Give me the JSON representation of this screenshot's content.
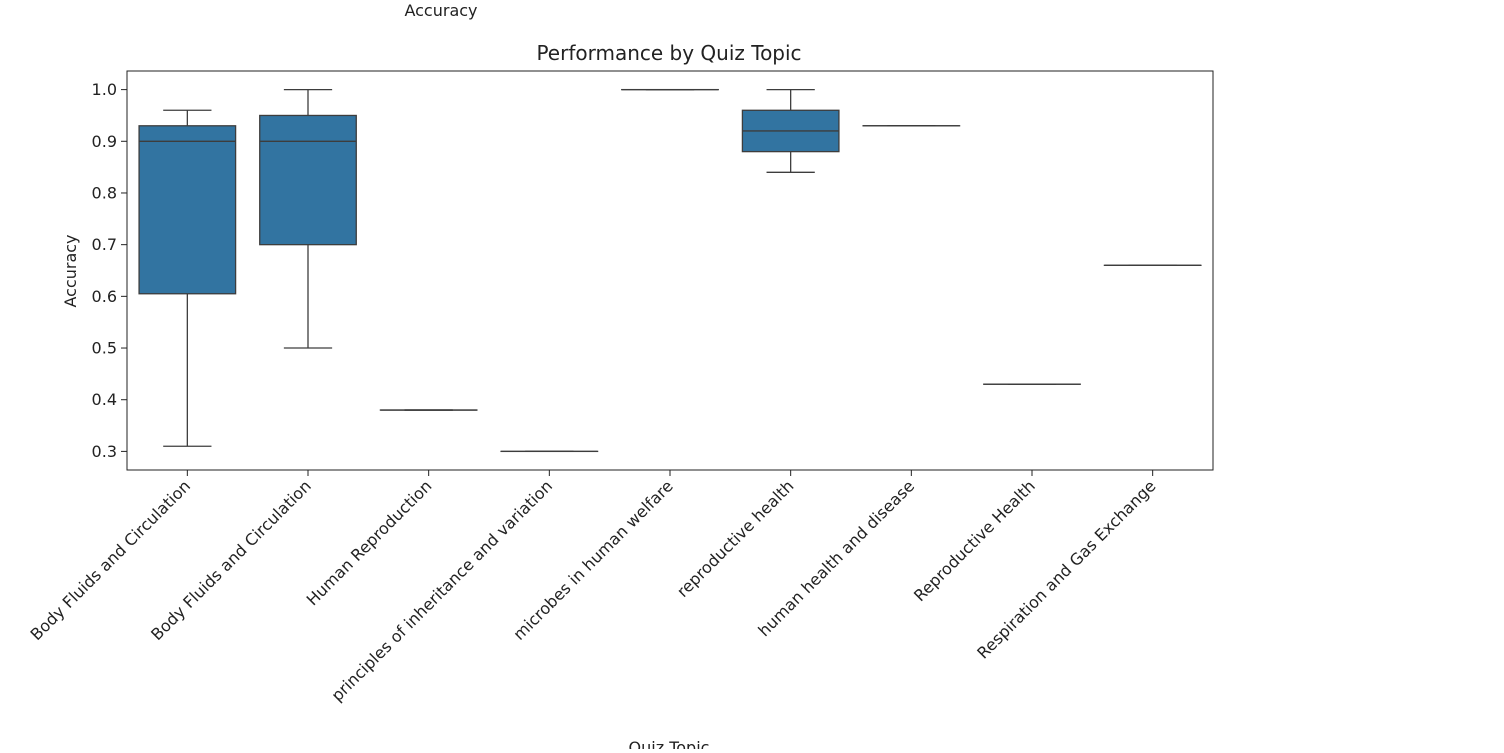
{
  "header_label": "Accuracy",
  "chart_data": {
    "type": "box",
    "title": "Performance by Quiz Topic",
    "xlabel": "Quiz Topic",
    "ylabel": "Accuracy",
    "ylim": [
      0.264,
      1.036
    ],
    "yticks": [
      0.3,
      0.4,
      0.5,
      0.6,
      0.7,
      0.8,
      0.9,
      1.0
    ],
    "ytick_labels": [
      "0.3",
      "0.4",
      "0.5",
      "0.6",
      "0.7",
      "0.8",
      "0.9",
      "1.0"
    ],
    "grid": false,
    "color": "#3274a1",
    "categories": [
      "Body Fluids and Circulation",
      "Body Fluids and Circulation",
      "Human Reproduction",
      "principles of inheritance and variation",
      "microbes in human welfare",
      "reproductive health",
      "human health and disease",
      "Reproductive Health",
      "Respiration and Gas Exchange"
    ],
    "boxes": [
      {
        "whislo": 0.31,
        "q1": 0.605,
        "med": 0.9,
        "q3": 0.93,
        "whishi": 0.96
      },
      {
        "whislo": 0.5,
        "q1": 0.7,
        "med": 0.9,
        "q3": 0.95,
        "whishi": 1.0
      },
      {
        "whislo": 0.38,
        "q1": 0.38,
        "med": 0.38,
        "q3": 0.38,
        "whishi": 0.38
      },
      {
        "whislo": 0.3,
        "q1": 0.3,
        "med": 0.3,
        "q3": 0.3,
        "whishi": 0.3
      },
      {
        "whislo": 1.0,
        "q1": 1.0,
        "med": 1.0,
        "q3": 1.0,
        "whishi": 1.0
      },
      {
        "whislo": 0.84,
        "q1": 0.88,
        "med": 0.92,
        "q3": 0.96,
        "whishi": 1.0
      },
      {
        "whislo": 0.93,
        "q1": 0.93,
        "med": 0.93,
        "q3": 0.93,
        "whishi": 0.93
      },
      {
        "whislo": 0.43,
        "q1": 0.43,
        "med": 0.43,
        "q3": 0.43,
        "whishi": 0.43
      },
      {
        "whislo": 0.66,
        "q1": 0.66,
        "med": 0.66,
        "q3": 0.66,
        "whishi": 0.66
      }
    ]
  }
}
